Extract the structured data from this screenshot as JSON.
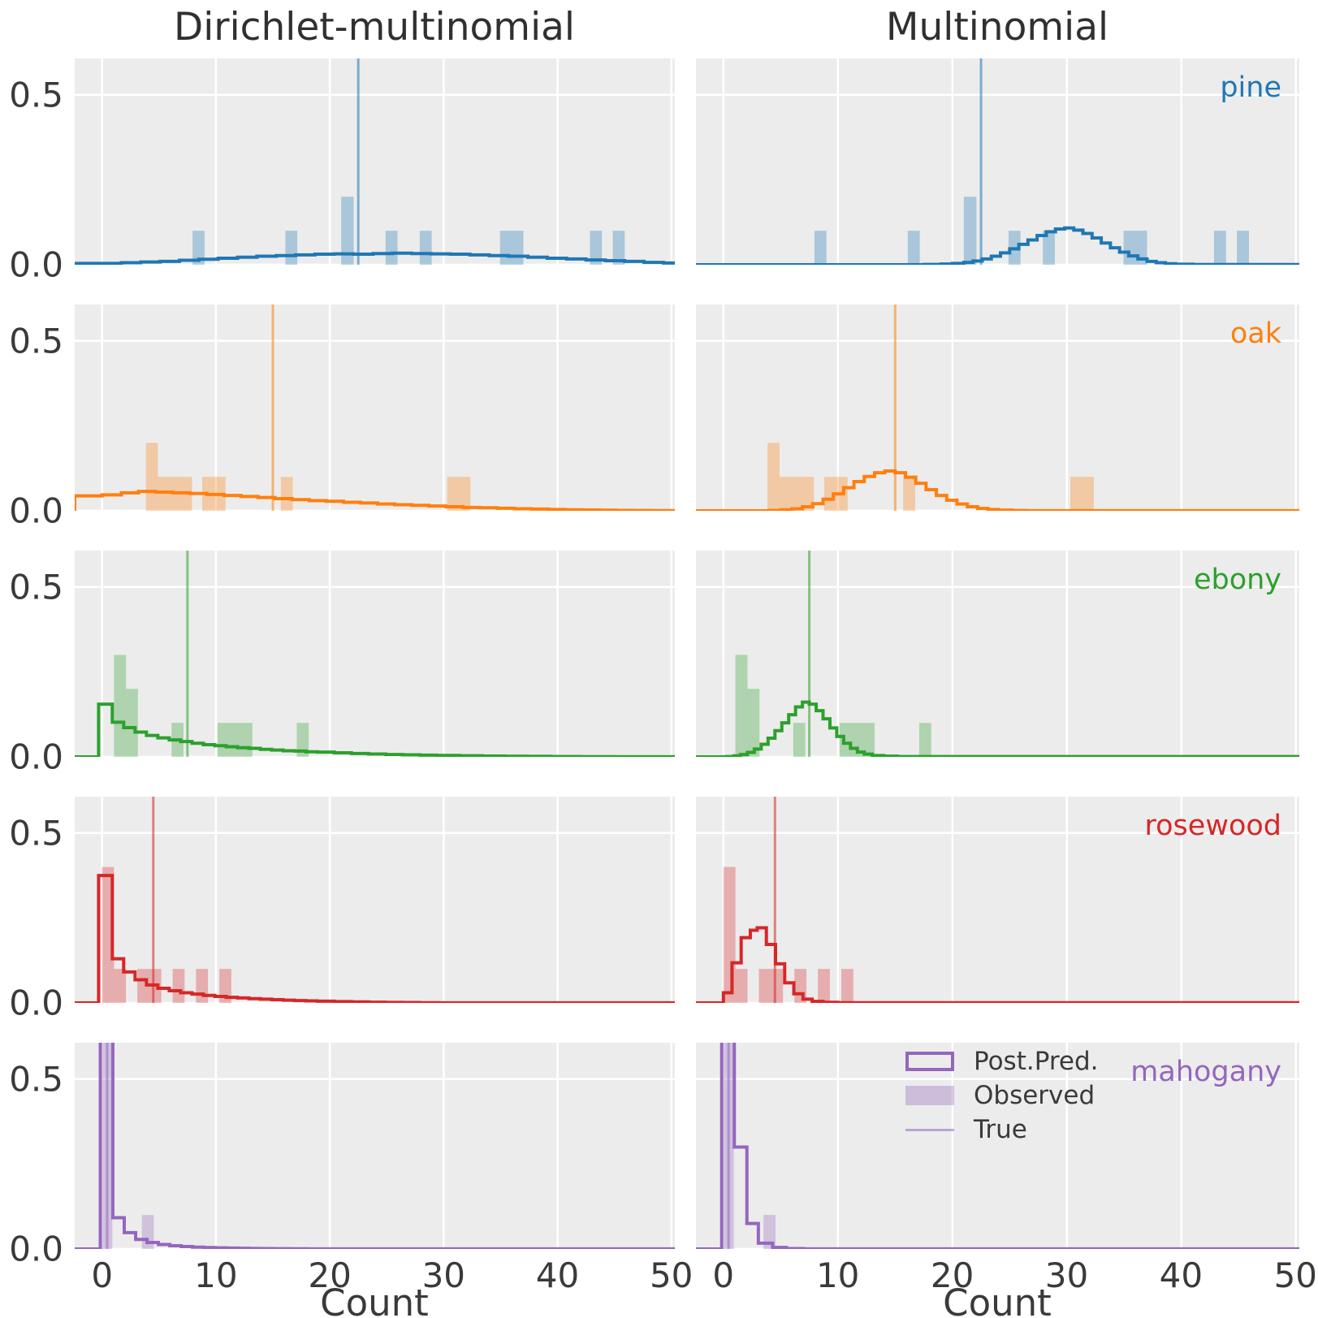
{
  "chart_data": {
    "type": "histogram-grid",
    "description": "Posterior predictive check: 5 species rows x 2 model columns, step-histogram posterior predictive distributions vs observed count histograms with true value vertical lines",
    "columns": [
      "Dirichlet-multinomial",
      "Multinomial"
    ],
    "xlabel": "Count",
    "x_ticks": [
      0,
      10,
      20,
      30,
      40,
      50
    ],
    "y_tick_labels": [
      "0.5",
      "0.0"
    ],
    "xlim": [
      -2.4,
      50.3
    ],
    "ylim": [
      0,
      0.607
    ],
    "grid": true,
    "plot_bg": "#ececec",
    "grid_color": "#ffffff",
    "text_color": "#3a3a3a",
    "legend": {
      "post_pred": "Post.Pred.",
      "observed": "Observed",
      "true_line": "True",
      "location": "upper-center of bottom-right subplot"
    },
    "series": [
      {
        "name": "pine",
        "color": "#1f77b4",
        "true_value": 22.5,
        "observed_values": [
          8,
          16,
          21,
          21,
          25,
          28,
          35,
          36,
          43,
          45
        ],
        "observed_bins": [
          [
            7.95,
            9.0,
            0.1
          ],
          [
            16.1,
            17.15,
            0.1
          ],
          [
            21.0,
            22.1,
            0.2
          ],
          [
            24.9,
            25.95,
            0.1
          ],
          [
            27.9,
            28.95,
            0.1
          ],
          [
            34.95,
            37.0,
            0.1
          ],
          [
            42.85,
            43.9,
            0.1
          ],
          [
            44.85,
            45.9,
            0.1
          ]
        ],
        "post_pred_dm": [
          [
            -2.4,
            0.004
          ],
          [
            1.7,
            0.006
          ],
          [
            3.4,
            0.008
          ],
          [
            5.1,
            0.01
          ],
          [
            6.8,
            0.013
          ],
          [
            8.5,
            0.016
          ],
          [
            10.2,
            0.019
          ],
          [
            11.9,
            0.022
          ],
          [
            13.6,
            0.025
          ],
          [
            15.3,
            0.027
          ],
          [
            17,
            0.029
          ],
          [
            18.7,
            0.031
          ],
          [
            20.4,
            0.032
          ],
          [
            22.1,
            0.031
          ],
          [
            23.8,
            0.033
          ],
          [
            25.5,
            0.034
          ],
          [
            27.2,
            0.033
          ],
          [
            28.9,
            0.032
          ],
          [
            30.6,
            0.031
          ],
          [
            32.3,
            0.029
          ],
          [
            34,
            0.027
          ],
          [
            35.7,
            0.025
          ],
          [
            37.4,
            0.022
          ],
          [
            39.1,
            0.019
          ],
          [
            40.8,
            0.017
          ],
          [
            42.5,
            0.014
          ],
          [
            44.2,
            0.012
          ],
          [
            45.9,
            0.01
          ],
          [
            47.6,
            0.007
          ],
          [
            49.3,
            0.005
          ]
        ],
        "post_pred_mn": [
          [
            17.5,
            0.001
          ],
          [
            19,
            0.002
          ],
          [
            20,
            0.004
          ],
          [
            21,
            0.007
          ],
          [
            21.8,
            0.011
          ],
          [
            22.6,
            0.017
          ],
          [
            23.4,
            0.025
          ],
          [
            24.2,
            0.035
          ],
          [
            25,
            0.047
          ],
          [
            25.8,
            0.06
          ],
          [
            26.6,
            0.073
          ],
          [
            27.4,
            0.086
          ],
          [
            28.2,
            0.097
          ],
          [
            29,
            0.105
          ],
          [
            29.8,
            0.108
          ],
          [
            30.6,
            0.102
          ],
          [
            31.4,
            0.092
          ],
          [
            32.2,
            0.079
          ],
          [
            33,
            0.064
          ],
          [
            33.8,
            0.05
          ],
          [
            34.6,
            0.037
          ],
          [
            35.4,
            0.026
          ],
          [
            36.2,
            0.017
          ],
          [
            37,
            0.01
          ],
          [
            37.8,
            0.006
          ],
          [
            38.6,
            0.003
          ],
          [
            39.5,
            0.0015
          ],
          [
            41,
            0.0005
          ]
        ]
      },
      {
        "name": "oak",
        "color": "#ff7f0e",
        "true_value": 15.0,
        "observed_values": [
          4,
          4,
          5,
          6,
          7,
          9,
          10,
          16,
          30,
          31
        ],
        "observed_bins": [
          [
            3.85,
            4.9,
            0.2
          ],
          [
            4.9,
            7.9,
            0.1
          ],
          [
            8.8,
            10.85,
            0.1
          ],
          [
            15.7,
            16.75,
            0.1
          ],
          [
            30.3,
            32.35,
            0.1
          ]
        ],
        "post_pred_dm": [
          [
            -2.4,
            0.044
          ],
          [
            0,
            0.047
          ],
          [
            1.7,
            0.053
          ],
          [
            3.2,
            0.057
          ],
          [
            4.7,
            0.055
          ],
          [
            6.2,
            0.053
          ],
          [
            7.7,
            0.051
          ],
          [
            9.2,
            0.048
          ],
          [
            10.7,
            0.045
          ],
          [
            12.2,
            0.042
          ],
          [
            13.7,
            0.039
          ],
          [
            15.2,
            0.036
          ],
          [
            16.7,
            0.033
          ],
          [
            18.2,
            0.03
          ],
          [
            19.7,
            0.028
          ],
          [
            21.2,
            0.025
          ],
          [
            22.7,
            0.023
          ],
          [
            24.2,
            0.02
          ],
          [
            25.7,
            0.018
          ],
          [
            27.2,
            0.016
          ],
          [
            28.7,
            0.014
          ],
          [
            30.2,
            0.012
          ],
          [
            31.7,
            0.01
          ],
          [
            33.2,
            0.009
          ],
          [
            34.7,
            0.0075
          ],
          [
            36.2,
            0.006
          ],
          [
            37.7,
            0.005
          ],
          [
            39.2,
            0.004
          ],
          [
            40.7,
            0.003
          ],
          [
            42.2,
            0.0024
          ],
          [
            43.7,
            0.0018
          ],
          [
            45.2,
            0.0013
          ],
          [
            46.7,
            0.0009
          ],
          [
            48.2,
            0.0006
          ],
          [
            49.7,
            0.0004
          ]
        ],
        "post_pred_mn": [
          [
            4,
            0.001
          ],
          [
            5,
            0.003
          ],
          [
            6,
            0.006
          ],
          [
            6.9,
            0.012
          ],
          [
            7.8,
            0.021
          ],
          [
            8.7,
            0.034
          ],
          [
            9.6,
            0.05
          ],
          [
            10.5,
            0.068
          ],
          [
            11.4,
            0.086
          ],
          [
            12.3,
            0.101
          ],
          [
            13.2,
            0.112
          ],
          [
            14.1,
            0.117
          ],
          [
            15,
            0.112
          ],
          [
            15.9,
            0.099
          ],
          [
            16.8,
            0.081
          ],
          [
            17.7,
            0.062
          ],
          [
            18.6,
            0.045
          ],
          [
            19.5,
            0.031
          ],
          [
            20.4,
            0.02
          ],
          [
            21.3,
            0.012
          ],
          [
            22.2,
            0.007
          ],
          [
            23.1,
            0.004
          ],
          [
            24,
            0.002
          ],
          [
            25.2,
            0.001
          ],
          [
            26.5,
            0.0004
          ]
        ]
      },
      {
        "name": "ebony",
        "color": "#2ca02c",
        "true_value": 7.5,
        "observed_values": [
          1,
          1,
          1,
          2,
          2,
          6,
          10,
          11,
          12,
          17
        ],
        "observed_bins": [
          [
            1.05,
            2.1,
            0.3
          ],
          [
            2.1,
            3.15,
            0.2
          ],
          [
            6.1,
            7.15,
            0.1
          ],
          [
            10.15,
            13.2,
            0.1
          ],
          [
            17.1,
            18.15,
            0.1
          ]
        ],
        "post_pred_dm": [
          [
            -0.3,
            0.155
          ],
          [
            0.9,
            0.102
          ],
          [
            1.9,
            0.086
          ],
          [
            2.9,
            0.073
          ],
          [
            3.9,
            0.063
          ],
          [
            4.9,
            0.056
          ],
          [
            5.9,
            0.05
          ],
          [
            6.9,
            0.045
          ],
          [
            7.9,
            0.04
          ],
          [
            8.9,
            0.036
          ],
          [
            9.9,
            0.033
          ],
          [
            10.9,
            0.03
          ],
          [
            11.9,
            0.027
          ],
          [
            12.9,
            0.025
          ],
          [
            13.9,
            0.022
          ],
          [
            14.9,
            0.02
          ],
          [
            15.9,
            0.018
          ],
          [
            16.9,
            0.017
          ],
          [
            17.9,
            0.015
          ],
          [
            18.9,
            0.014
          ],
          [
            20.4,
            0.012
          ],
          [
            21.9,
            0.01
          ],
          [
            23.4,
            0.0085
          ],
          [
            24.9,
            0.007
          ],
          [
            26.4,
            0.006
          ],
          [
            27.9,
            0.005
          ],
          [
            29.4,
            0.0042
          ],
          [
            31.4,
            0.0033
          ],
          [
            33.4,
            0.0025
          ],
          [
            35.4,
            0.0019
          ],
          [
            37.4,
            0.0014
          ],
          [
            39.4,
            0.001
          ],
          [
            42,
            0.0007
          ],
          [
            45,
            0.0004
          ],
          [
            48,
            0.0002
          ]
        ],
        "post_pred_mn": [
          [
            0.3,
            0.001
          ],
          [
            0.9,
            0.003
          ],
          [
            1.5,
            0.007
          ],
          [
            2.1,
            0.013
          ],
          [
            2.7,
            0.023
          ],
          [
            3.3,
            0.037
          ],
          [
            3.9,
            0.055
          ],
          [
            4.5,
            0.077
          ],
          [
            5.1,
            0.1
          ],
          [
            5.7,
            0.124
          ],
          [
            6.3,
            0.147
          ],
          [
            6.9,
            0.161
          ],
          [
            7.5,
            0.155
          ],
          [
            8.1,
            0.136
          ],
          [
            8.7,
            0.112
          ],
          [
            9.3,
            0.085
          ],
          [
            9.9,
            0.06
          ],
          [
            10.5,
            0.04
          ],
          [
            11.1,
            0.025
          ],
          [
            11.7,
            0.014
          ],
          [
            12.3,
            0.008
          ],
          [
            13,
            0.004
          ],
          [
            14,
            0.002
          ],
          [
            15.2,
            0.001
          ]
        ]
      },
      {
        "name": "rosewood",
        "color": "#d62728",
        "true_value": 4.5,
        "observed_values": [
          0,
          0,
          0,
          0,
          1,
          3,
          4,
          6,
          8,
          10
        ],
        "observed_bins": [
          [
            0,
            1.05,
            0.4
          ],
          [
            1.05,
            2.1,
            0.1
          ],
          [
            3.1,
            5.2,
            0.1
          ],
          [
            6.2,
            7.25,
            0.1
          ],
          [
            8.25,
            9.3,
            0.1
          ],
          [
            10.3,
            11.35,
            0.1
          ]
        ],
        "post_pred_dm": [
          [
            -0.3,
            0.375
          ],
          [
            0.9,
            0.13
          ],
          [
            1.9,
            0.091
          ],
          [
            2.9,
            0.068
          ],
          [
            3.9,
            0.053
          ],
          [
            4.9,
            0.043
          ],
          [
            5.9,
            0.036
          ],
          [
            6.9,
            0.03
          ],
          [
            7.9,
            0.026
          ],
          [
            8.9,
            0.022
          ],
          [
            9.9,
            0.019
          ],
          [
            10.9,
            0.0165
          ],
          [
            11.9,
            0.0145
          ],
          [
            12.9,
            0.0125
          ],
          [
            13.9,
            0.011
          ],
          [
            14.9,
            0.0095
          ],
          [
            15.9,
            0.008
          ],
          [
            16.9,
            0.007
          ],
          [
            17.9,
            0.006
          ],
          [
            18.9,
            0.005
          ],
          [
            20.4,
            0.004
          ],
          [
            21.9,
            0.003
          ],
          [
            23.4,
            0.0022
          ],
          [
            24.9,
            0.0016
          ],
          [
            26.4,
            0.0011
          ],
          [
            27.9,
            0.0007
          ],
          [
            29.5,
            0.0004
          ]
        ],
        "post_pred_mn": [
          [
            0,
            0.03
          ],
          [
            0.75,
            0.118
          ],
          [
            1.55,
            0.192
          ],
          [
            2.35,
            0.214
          ],
          [
            2.95,
            0.221
          ],
          [
            3.75,
            0.172
          ],
          [
            4.55,
            0.115
          ],
          [
            5.35,
            0.059
          ],
          [
            6.15,
            0.027
          ],
          [
            6.95,
            0.011
          ],
          [
            7.75,
            0.0045
          ],
          [
            8.7,
            0.0018
          ],
          [
            10,
            0.0006
          ]
        ]
      },
      {
        "name": "mahogany",
        "color": "#9467bd",
        "true_value": 0.45,
        "observed_values": [
          0,
          0,
          0,
          0,
          0,
          0,
          0,
          0,
          0,
          4
        ],
        "observed_bins": [
          [
            0,
            0.9,
            0.9
          ],
          [
            3.5,
            4.55,
            0.1
          ]
        ],
        "post_pred_dm": [
          [
            -0.15,
            0.66
          ],
          [
            0.95,
            0.092
          ],
          [
            1.95,
            0.048
          ],
          [
            2.95,
            0.028
          ],
          [
            3.95,
            0.019
          ],
          [
            4.95,
            0.013
          ],
          [
            5.95,
            0.0095
          ],
          [
            6.95,
            0.0072
          ],
          [
            7.95,
            0.0055
          ],
          [
            8.95,
            0.0042
          ],
          [
            9.95,
            0.0033
          ],
          [
            10.95,
            0.0026
          ],
          [
            11.95,
            0.002
          ],
          [
            12.95,
            0.0016
          ],
          [
            13.95,
            0.0012
          ],
          [
            15,
            0.0009
          ],
          [
            16.5,
            0.0006
          ],
          [
            18,
            0.0004
          ],
          [
            20,
            0.0002
          ]
        ],
        "post_pred_mn": [
          [
            -0.15,
            0.66
          ],
          [
            0.95,
            0.3
          ],
          [
            2.05,
            0.075
          ],
          [
            3.05,
            0.017
          ],
          [
            4.3,
            0.0045
          ],
          [
            5.5,
            0.0012
          ],
          [
            7,
            0.0003
          ]
        ]
      }
    ]
  }
}
